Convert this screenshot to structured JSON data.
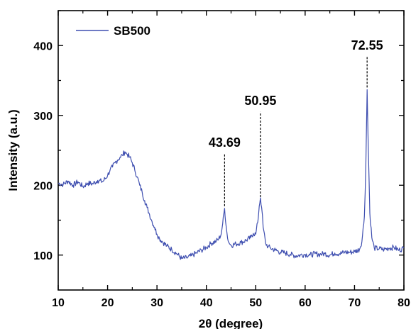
{
  "chart_data": {
    "type": "line",
    "xlabel": "2θ (degree)",
    "ylabel": "Intensity (a.u.)",
    "xlim": [
      10,
      80
    ],
    "ylim": [
      50,
      450
    ],
    "x_ticks": [
      10,
      20,
      30,
      40,
      50,
      60,
      70,
      80
    ],
    "y_ticks": [
      100,
      200,
      300,
      400
    ],
    "legend_position": "top-left",
    "grid": false,
    "line_color": "#3f4fb0",
    "series": [
      {
        "name": "SB500",
        "x": [
          10,
          11,
          12,
          13,
          14,
          15,
          16,
          17,
          18,
          19,
          20,
          20.5,
          21,
          21.5,
          22,
          22.5,
          23,
          23.5,
          24,
          24.5,
          25,
          25.5,
          26,
          26.5,
          27,
          27.5,
          28,
          28.5,
          29,
          29.5,
          30,
          30.5,
          31,
          32,
          33,
          34,
          35,
          36,
          37,
          38,
          39,
          40,
          41,
          42,
          42.5,
          43,
          43.3,
          43.69,
          44,
          44.3,
          44.7,
          45,
          46,
          47,
          48,
          49,
          49.5,
          50,
          50.4,
          50.7,
          50.95,
          51.2,
          51.5,
          52,
          52.5,
          53,
          54,
          55,
          56,
          57,
          58,
          59,
          60,
          61,
          62,
          63,
          64,
          65,
          66,
          67,
          68,
          69,
          70,
          71,
          71.5,
          72,
          72.3,
          72.55,
          72.8,
          73.1,
          73.5,
          74,
          75,
          76,
          77,
          78,
          79,
          80
        ],
        "y": [
          203,
          201,
          206,
          200,
          205,
          198,
          203,
          202,
          207,
          205,
          214,
          222,
          226,
          232,
          236,
          240,
          243,
          248,
          244,
          240,
          232,
          222,
          212,
          200,
          190,
          178,
          168,
          158,
          148,
          140,
          130,
          124,
          120,
          113,
          108,
          102,
          95,
          96,
          99,
          103,
          107,
          111,
          117,
          120,
          123,
          130,
          145,
          167,
          142,
          124,
          116,
          114,
          116,
          118,
          121,
          125,
          131,
          130,
          147,
          170,
          182,
          168,
          140,
          117,
          112,
          110,
          107,
          104,
          103,
          101,
          99,
          100,
          101,
          100,
          102,
          101,
          102,
          100,
          103,
          102,
          104,
          104,
          105,
          108,
          120,
          155,
          230,
          337,
          250,
          160,
          125,
          110,
          109,
          108,
          110,
          111,
          107,
          110
        ]
      }
    ],
    "annotations": [
      {
        "text": "43.69",
        "x": 43.69,
        "line_y0": 170,
        "line_y1": 245,
        "label_y": 255
      },
      {
        "text": "50.95",
        "x": 50.95,
        "line_y0": 183,
        "line_y1": 305,
        "label_y": 315
      },
      {
        "text": "72.55",
        "x": 72.55,
        "line_y0": 340,
        "line_y1": 385,
        "label_y": 394
      }
    ]
  }
}
